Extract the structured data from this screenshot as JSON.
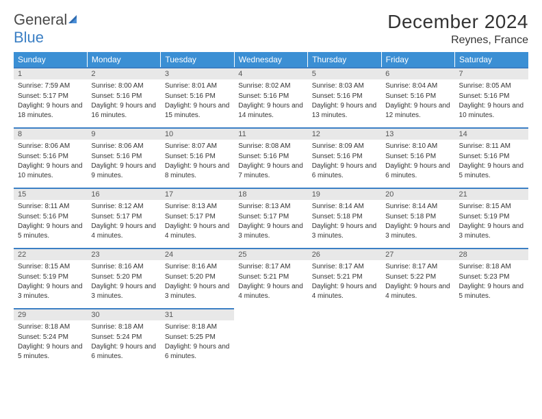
{
  "brand": {
    "part1": "General",
    "part2": "Blue"
  },
  "title": "December 2024",
  "location": "Reynes, France",
  "header_bg": "#3b8fd4",
  "accent": "#3b7fc4",
  "daynum_bg": "#e8e8e8",
  "weekdays": [
    "Sunday",
    "Monday",
    "Tuesday",
    "Wednesday",
    "Thursday",
    "Friday",
    "Saturday"
  ],
  "weeks": [
    [
      {
        "n": "1",
        "sr": "7:59 AM",
        "ss": "5:17 PM",
        "dl": "9 hours and 18 minutes."
      },
      {
        "n": "2",
        "sr": "8:00 AM",
        "ss": "5:16 PM",
        "dl": "9 hours and 16 minutes."
      },
      {
        "n": "3",
        "sr": "8:01 AM",
        "ss": "5:16 PM",
        "dl": "9 hours and 15 minutes."
      },
      {
        "n": "4",
        "sr": "8:02 AM",
        "ss": "5:16 PM",
        "dl": "9 hours and 14 minutes."
      },
      {
        "n": "5",
        "sr": "8:03 AM",
        "ss": "5:16 PM",
        "dl": "9 hours and 13 minutes."
      },
      {
        "n": "6",
        "sr": "8:04 AM",
        "ss": "5:16 PM",
        "dl": "9 hours and 12 minutes."
      },
      {
        "n": "7",
        "sr": "8:05 AM",
        "ss": "5:16 PM",
        "dl": "9 hours and 10 minutes."
      }
    ],
    [
      {
        "n": "8",
        "sr": "8:06 AM",
        "ss": "5:16 PM",
        "dl": "9 hours and 10 minutes."
      },
      {
        "n": "9",
        "sr": "8:06 AM",
        "ss": "5:16 PM",
        "dl": "9 hours and 9 minutes."
      },
      {
        "n": "10",
        "sr": "8:07 AM",
        "ss": "5:16 PM",
        "dl": "9 hours and 8 minutes."
      },
      {
        "n": "11",
        "sr": "8:08 AM",
        "ss": "5:16 PM",
        "dl": "9 hours and 7 minutes."
      },
      {
        "n": "12",
        "sr": "8:09 AM",
        "ss": "5:16 PM",
        "dl": "9 hours and 6 minutes."
      },
      {
        "n": "13",
        "sr": "8:10 AM",
        "ss": "5:16 PM",
        "dl": "9 hours and 6 minutes."
      },
      {
        "n": "14",
        "sr": "8:11 AM",
        "ss": "5:16 PM",
        "dl": "9 hours and 5 minutes."
      }
    ],
    [
      {
        "n": "15",
        "sr": "8:11 AM",
        "ss": "5:16 PM",
        "dl": "9 hours and 5 minutes."
      },
      {
        "n": "16",
        "sr": "8:12 AM",
        "ss": "5:17 PM",
        "dl": "9 hours and 4 minutes."
      },
      {
        "n": "17",
        "sr": "8:13 AM",
        "ss": "5:17 PM",
        "dl": "9 hours and 4 minutes."
      },
      {
        "n": "18",
        "sr": "8:13 AM",
        "ss": "5:17 PM",
        "dl": "9 hours and 3 minutes."
      },
      {
        "n": "19",
        "sr": "8:14 AM",
        "ss": "5:18 PM",
        "dl": "9 hours and 3 minutes."
      },
      {
        "n": "20",
        "sr": "8:14 AM",
        "ss": "5:18 PM",
        "dl": "9 hours and 3 minutes."
      },
      {
        "n": "21",
        "sr": "8:15 AM",
        "ss": "5:19 PM",
        "dl": "9 hours and 3 minutes."
      }
    ],
    [
      {
        "n": "22",
        "sr": "8:15 AM",
        "ss": "5:19 PM",
        "dl": "9 hours and 3 minutes."
      },
      {
        "n": "23",
        "sr": "8:16 AM",
        "ss": "5:20 PM",
        "dl": "9 hours and 3 minutes."
      },
      {
        "n": "24",
        "sr": "8:16 AM",
        "ss": "5:20 PM",
        "dl": "9 hours and 3 minutes."
      },
      {
        "n": "25",
        "sr": "8:17 AM",
        "ss": "5:21 PM",
        "dl": "9 hours and 4 minutes."
      },
      {
        "n": "26",
        "sr": "8:17 AM",
        "ss": "5:21 PM",
        "dl": "9 hours and 4 minutes."
      },
      {
        "n": "27",
        "sr": "8:17 AM",
        "ss": "5:22 PM",
        "dl": "9 hours and 4 minutes."
      },
      {
        "n": "28",
        "sr": "8:18 AM",
        "ss": "5:23 PM",
        "dl": "9 hours and 5 minutes."
      }
    ],
    [
      {
        "n": "29",
        "sr": "8:18 AM",
        "ss": "5:24 PM",
        "dl": "9 hours and 5 minutes."
      },
      {
        "n": "30",
        "sr": "8:18 AM",
        "ss": "5:24 PM",
        "dl": "9 hours and 6 minutes."
      },
      {
        "n": "31",
        "sr": "8:18 AM",
        "ss": "5:25 PM",
        "dl": "9 hours and 6 minutes."
      },
      null,
      null,
      null,
      null
    ]
  ],
  "labels": {
    "sunrise": "Sunrise:",
    "sunset": "Sunset:",
    "daylight": "Daylight:"
  }
}
